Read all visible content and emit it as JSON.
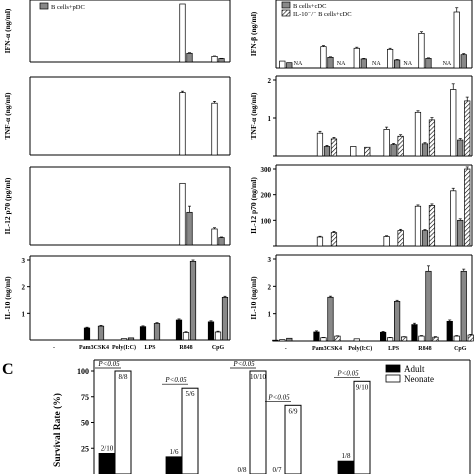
{
  "chart_data": [
    {
      "id": "p1",
      "type": "bar",
      "ylabel": "IFN-α (ng/ml)",
      "ylim": [
        0,
        30
      ],
      "yticks": [],
      "legend": [
        {
          "name": "B cells+pDC",
          "fill": "#888888",
          "hatch": false
        }
      ],
      "categories": [
        "-",
        "Pam3CSK4",
        "Poly(I:C)",
        "LPS",
        "R848",
        "CpG"
      ],
      "series": [
        {
          "name": "",
          "fill": "#ffffff",
          "values": [
            0,
            0,
            0,
            0,
            30,
            2.9
          ],
          "errors": [
            0,
            0,
            0,
            0,
            0,
            0.2
          ]
        },
        {
          "name": "B cells+pDC",
          "fill": "#888888",
          "values": [
            0,
            0,
            0,
            0,
            4.5,
            1.8
          ],
          "errors": [
            0,
            0,
            0,
            0,
            0.3,
            0.1
          ]
        }
      ]
    },
    {
      "id": "p2",
      "type": "bar",
      "ylabel": "IFN-β (ng/ml)",
      "ylim": [
        0,
        1.2
      ],
      "yticks": [],
      "legend": [
        {
          "name": "B cells+cDC",
          "fill": "#888888",
          "hatch": false
        },
        {
          "name": "IL-10⁻/⁻ B cells+cDC",
          "fill": "#ffffff",
          "hatch": true
        }
      ],
      "categories": [
        "-",
        "Pam3CSK4",
        "Poly(I:C)",
        "LPS",
        "R848",
        "CpG"
      ],
      "annotations": [
        "NA",
        "NA",
        "NA",
        "NA",
        "NA"
      ],
      "series": [
        {
          "name": "",
          "fill": "#ffffff",
          "hatch": false,
          "values": [
            0.13,
            0.4,
            0.37,
            0.35,
            0.65,
            1.05
          ],
          "errors": [
            0,
            0.02,
            0.02,
            0.02,
            0.03,
            0.08
          ]
        },
        {
          "name": "B cells+cDC",
          "fill": "#888888",
          "hatch": false,
          "values": [
            0.1,
            0.2,
            0.17,
            0.15,
            0.18,
            0.25
          ],
          "errors": [
            0,
            0.01,
            0.01,
            0.01,
            0.01,
            0.02
          ]
        }
      ]
    },
    {
      "id": "p3",
      "type": "bar",
      "ylabel": "TNF-α (ng/ml)",
      "ylim": [
        0,
        1.6
      ],
      "yticks": [],
      "categories": [
        "-",
        "Pam3CSK4",
        "Poly(I:C)",
        "LPS",
        "R848",
        "CpG"
      ],
      "series": [
        {
          "name": "",
          "fill": "#ffffff",
          "values": [
            0,
            0,
            0,
            0,
            1.35,
            1.12
          ],
          "errors": [
            0,
            0,
            0,
            0,
            0.03,
            0.04
          ]
        },
        {
          "name": "B cells+pDC",
          "fill": "#888888",
          "values": [
            0,
            0,
            0,
            0,
            0,
            0
          ],
          "errors": [
            0,
            0,
            0,
            0,
            0,
            0
          ]
        }
      ]
    },
    {
      "id": "p4",
      "type": "bar",
      "ylabel": "TNF-α (ng/ml)",
      "ylim": [
        0,
        2
      ],
      "yticks": [
        {
          "v": 0,
          "t": ""
        },
        {
          "v": 1,
          "t": "1"
        },
        {
          "v": 2,
          "t": "2"
        }
      ],
      "categories": [
        "-",
        "Pam3CSK4",
        "Poly(I:C)",
        "LPS",
        "R848",
        "CpG"
      ],
      "series": [
        {
          "name": "",
          "fill": "#ffffff",
          "hatch": false,
          "values": [
            0,
            0.6,
            0.25,
            0.7,
            1.15,
            1.75
          ],
          "errors": [
            0,
            0.05,
            0,
            0.06,
            0.04,
            0.15
          ]
        },
        {
          "name": "B cells+cDC",
          "fill": "#888888",
          "hatch": false,
          "values": [
            0,
            0.25,
            0,
            0.3,
            0.32,
            0.42
          ],
          "errors": [
            0,
            0.03,
            0,
            0.03,
            0.03,
            0.04
          ]
        },
        {
          "name": "IL-10⁻/⁻ B cells+cDC",
          "fill": "#ffffff",
          "hatch": true,
          "values": [
            0,
            0.45,
            0.23,
            0.52,
            0.95,
            1.45
          ],
          "errors": [
            0,
            0.04,
            0,
            0.04,
            0.06,
            0.1
          ]
        }
      ]
    },
    {
      "id": "p5",
      "type": "bar",
      "ylabel": "IL-12 p70 (pg/ml)",
      "ylim": [
        0,
        120
      ],
      "yticks": [],
      "categories": [
        "-",
        "Pam3CSK4",
        "Poly(I:C)",
        "LPS",
        "R848",
        "CpG"
      ],
      "series": [
        {
          "name": "",
          "fill": "#ffffff",
          "values": [
            0,
            0,
            0,
            0,
            100,
            26
          ],
          "errors": [
            0,
            0,
            0,
            0,
            0,
            2
          ]
        },
        {
          "name": "B cells+pDC",
          "fill": "#888888",
          "values": [
            0,
            0,
            0,
            0,
            53,
            12
          ],
          "errors": [
            0,
            0,
            0,
            0,
            10,
            1
          ]
        }
      ]
    },
    {
      "id": "p6",
      "type": "bar",
      "ylabel": "IL-12 p70 (ng/ml)",
      "ylim": [
        0,
        300
      ],
      "yticks": [
        {
          "v": 0,
          "t": ""
        },
        {
          "v": 100,
          "t": "100"
        },
        {
          "v": 200,
          "t": "200"
        },
        {
          "v": 300,
          "t": "300"
        }
      ],
      "categories": [
        "-",
        "Pam3CSK4",
        "Poly(I:C)",
        "LPS",
        "R848",
        "CpG"
      ],
      "series": [
        {
          "name": "",
          "fill": "#ffffff",
          "hatch": false,
          "values": [
            0,
            35,
            0,
            37,
            155,
            215
          ],
          "errors": [
            0,
            3,
            0,
            3,
            5,
            10
          ]
        },
        {
          "name": "B cells+cDC",
          "fill": "#888888",
          "hatch": false,
          "values": [
            0,
            0,
            0,
            0,
            60,
            100
          ],
          "errors": [
            0,
            0,
            0,
            0,
            4,
            6
          ]
        },
        {
          "name": "IL-10⁻/⁻ B cells+cDC",
          "fill": "#ffffff",
          "hatch": true,
          "values": [
            0,
            52,
            0,
            60,
            158,
            300
          ],
          "errors": [
            0,
            5,
            0,
            5,
            6,
            8
          ]
        }
      ]
    },
    {
      "id": "p7",
      "type": "bar",
      "ylabel": "IL-10 (ng/ml)",
      "ylim": [
        0,
        3
      ],
      "yticks": [
        {
          "v": 1,
          "t": "1"
        },
        {
          "v": 2,
          "t": "2"
        },
        {
          "v": 3,
          "t": "3"
        }
      ],
      "categories": [
        "-",
        "Pam3CSK4",
        "Poly(I:C)",
        "LPS",
        "R848",
        "CpG"
      ],
      "series": [
        {
          "name": "",
          "fill": "#000000",
          "values": [
            0,
            0.45,
            0,
            0.5,
            0.75,
            0.68
          ],
          "errors": [
            0,
            0.03,
            0,
            0.03,
            0.04,
            0.04
          ]
        },
        {
          "name": "",
          "fill": "#ffffff",
          "values": [
            0,
            0,
            0.05,
            0,
            0.28,
            0.3
          ],
          "errors": [
            0,
            0,
            0,
            0,
            0.03,
            0.03
          ]
        },
        {
          "name": "B cells+pDC",
          "fill": "#888888",
          "values": [
            0,
            0.52,
            0.08,
            0.62,
            2.95,
            1.6
          ],
          "errors": [
            0,
            0.03,
            0,
            0.03,
            0.05,
            0.04
          ]
        }
      ]
    },
    {
      "id": "p8",
      "type": "bar",
      "ylabel": "IL-10 (ng/ml)",
      "ylim": [
        0,
        3
      ],
      "yticks": [
        {
          "v": 0,
          "t": ""
        },
        {
          "v": 1,
          "t": "1"
        },
        {
          "v": 2,
          "t": "2"
        },
        {
          "v": 3,
          "t": "3"
        }
      ],
      "categories": [
        "-",
        "Pam3CSK4",
        "Poly(I:C)",
        "LPS",
        "R848",
        "CpG"
      ],
      "series": [
        {
          "name": "",
          "fill": "#000000",
          "hatch": false,
          "values": [
            0.03,
            0.33,
            0,
            0.32,
            0.6,
            0.72
          ],
          "errors": [
            0,
            0.04,
            0,
            0.03,
            0.05,
            0.05
          ]
        },
        {
          "name": "",
          "fill": "#ffffff",
          "hatch": false,
          "values": [
            0.05,
            0.12,
            0.08,
            0.12,
            0.18,
            0.18
          ],
          "errors": [
            0,
            0.01,
            0,
            0.01,
            0.02,
            0.02
          ]
        },
        {
          "name": "B cells+cDC",
          "fill": "#888888",
          "hatch": false,
          "values": [
            0.1,
            1.6,
            0,
            1.45,
            2.55,
            2.55
          ],
          "errors": [
            0,
            0.04,
            0,
            0.04,
            0.2,
            0.08
          ]
        },
        {
          "name": "IL-10⁻/⁻ B cells+cDC",
          "fill": "#ffffff",
          "hatch": true,
          "values": [
            0,
            0.18,
            0,
            0.15,
            0.14,
            0.22
          ],
          "errors": [
            0,
            0.01,
            0,
            0.01,
            0.02,
            0.02
          ]
        }
      ]
    },
    {
      "id": "pc",
      "type": "bar",
      "panel_letter": "C",
      "ylabel": "Survival Rate (%)",
      "ylim": [
        0,
        100
      ],
      "yticks": [
        {
          "v": 0,
          "t": "0"
        },
        {
          "v": 25,
          "t": "25"
        },
        {
          "v": 50,
          "t": "50"
        },
        {
          "v": 75,
          "t": "75"
        },
        {
          "v": 100,
          "t": "100"
        }
      ],
      "legend": [
        {
          "name": "Adult",
          "fill": "#000000"
        },
        {
          "name": "Neonate",
          "fill": "#ffffff"
        }
      ],
      "groups": [
        {
          "adult": 20,
          "neonate": 100,
          "adult_label": "2/10",
          "neonate_label": "8/8",
          "p": "P<0.05"
        },
        {
          "adult": 16.7,
          "neonate": 83.3,
          "adult_label": "1/6",
          "neonate_label": "5/6",
          "p": "P<0.05"
        },
        {
          "adult": 0,
          "neonate": 100,
          "adult_label": "0/8",
          "neonate_label": "10/10",
          "p": "P<0.05"
        },
        {
          "adult": 0,
          "neonate": 66.7,
          "adult_label": "0/7",
          "neonate_label": "6/9",
          "p": "P<0.05"
        },
        {
          "adult": 12.5,
          "neonate": 90,
          "adult_label": "1/8",
          "neonate_label": "9/10",
          "p": "P<0.05"
        }
      ]
    }
  ]
}
